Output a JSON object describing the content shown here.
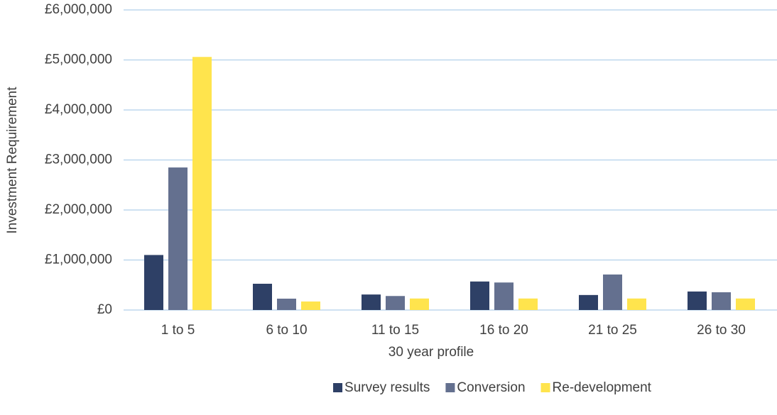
{
  "chart_data": {
    "type": "bar",
    "x_label": "30 year profile",
    "y_label": "Investment Requirement",
    "categories": [
      "1 to 5",
      "6 to 10",
      "11 to 15",
      "16 to 20",
      "21 to 25",
      "26 to 30"
    ],
    "series": [
      {
        "name": "Survey results",
        "color": "#2e4066",
        "values": [
          1100000,
          525000,
          310000,
          570000,
          300000,
          370000
        ]
      },
      {
        "name": "Conversion",
        "color": "#64708f",
        "values": [
          2850000,
          227000,
          280000,
          550000,
          710000,
          355000
        ]
      },
      {
        "name": "Re-development",
        "color": "#ffe44d",
        "values": [
          5060000,
          170000,
          230000,
          230000,
          230000,
          230000
        ]
      }
    ],
    "ylim": [
      0,
      6000000
    ],
    "yticks": [
      {
        "value": 0,
        "label": "£0"
      },
      {
        "value": 1000000,
        "label": "£1,000,000"
      },
      {
        "value": 2000000,
        "label": "£2,000,000"
      },
      {
        "value": 3000000,
        "label": "£3,000,000"
      },
      {
        "value": 4000000,
        "label": "£4,000,000"
      },
      {
        "value": 5000000,
        "label": "£5,000,000"
      },
      {
        "value": 6000000,
        "label": "£6,000,000"
      }
    ],
    "grid": true,
    "legend": "bottom"
  }
}
